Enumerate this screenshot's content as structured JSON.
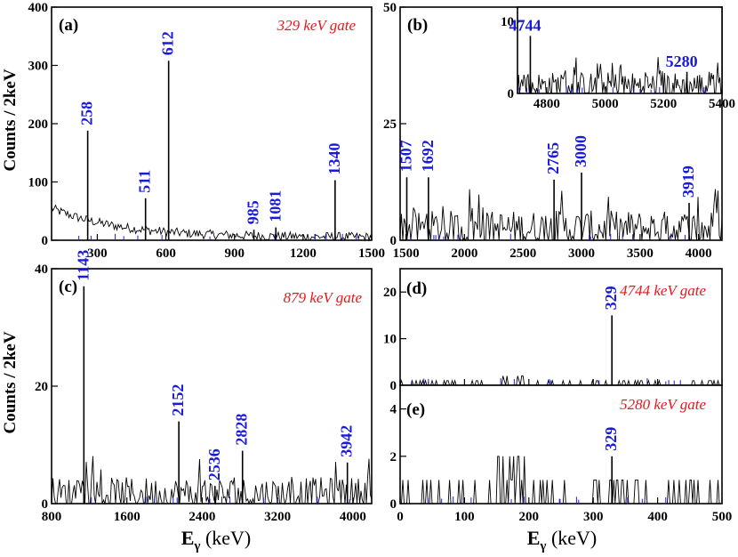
{
  "colors": {
    "spectrum": "#000000",
    "peak_label": "#1a1ad9",
    "gate_label": "#e8161b",
    "blue_spikes": "#1a1ad9"
  },
  "x_axis_label": {
    "main": "E",
    "sub": "γ",
    "unit": " (keV)"
  },
  "y_axis_label": "Counts / 2keV",
  "chart_data": [
    {
      "id": "a",
      "type": "line",
      "panel_label": "(a)",
      "gate_label": "329 keV gate",
      "xlim": [
        100,
        1500
      ],
      "ylim": [
        0,
        400
      ],
      "xticks": [
        300,
        600,
        900,
        1200,
        1500
      ],
      "yticks": [
        0,
        100,
        200,
        300,
        400
      ],
      "ylabel": "Counts / 2keV",
      "background": {
        "type": "exponential",
        "start": 55,
        "end": 5,
        "decay_kev": 300,
        "noise": 8
      },
      "peaks": [
        {
          "label": "258",
          "x": 258,
          "y": 188
        },
        {
          "label": "511",
          "x": 511,
          "y": 72
        },
        {
          "label": "612",
          "x": 612,
          "y": 308
        },
        {
          "label": "985",
          "x": 985,
          "y": 18
        },
        {
          "label": "1081",
          "x": 1081,
          "y": 22
        },
        {
          "label": "1340",
          "x": 1340,
          "y": 103
        }
      ]
    },
    {
      "id": "b",
      "type": "line",
      "panel_label": "(b)",
      "gate_label": "329 keV gate",
      "xlim": [
        1450,
        4200
      ],
      "ylim": [
        0,
        50
      ],
      "xticks": [
        1500,
        2000,
        2500,
        3000,
        3500,
        4000
      ],
      "yticks": [
        0,
        25,
        50
      ],
      "background": {
        "type": "flat",
        "level": 2,
        "noise": 4
      },
      "peaks": [
        {
          "label": "1507",
          "x": 1507,
          "y": 13.5
        },
        {
          "label": "1692",
          "x": 1692,
          "y": 13.5
        },
        {
          "label": "2765",
          "x": 2765,
          "y": 13
        },
        {
          "label": "3000",
          "x": 3000,
          "y": 14.5
        },
        {
          "label": "3919",
          "x": 3919,
          "y": 8
        }
      ],
      "inset": {
        "xlim": [
          4700,
          5400
        ],
        "ylim": [
          0,
          12
        ],
        "xticks": [
          4800,
          5000,
          5200,
          5400
        ],
        "yticks": [
          0,
          10
        ],
        "background": {
          "type": "flat",
          "level": 0.8,
          "noise": 2
        },
        "peaks": [
          {
            "label": "4744",
            "x": 4744,
            "y": 8
          },
          {
            "label": "5280",
            "x": 5280,
            "y": 3
          }
        ]
      }
    },
    {
      "id": "c",
      "type": "line",
      "panel_label": "(c)",
      "gate_label": "879 keV gate",
      "xlim": [
        800,
        4200
      ],
      "ylim": [
        0,
        40
      ],
      "xticks": [
        800,
        1600,
        2400,
        3200,
        4000
      ],
      "yticks": [
        0,
        20,
        40
      ],
      "ylabel": "Counts / 2keV",
      "background": {
        "type": "flat",
        "level": 1.2,
        "noise": 3
      },
      "peaks": [
        {
          "label": "1143",
          "x": 1143,
          "y": 37
        },
        {
          "label": "2152",
          "x": 2152,
          "y": 14
        },
        {
          "label": "2536",
          "x": 2536,
          "y": 3
        },
        {
          "label": "2828",
          "x": 2828,
          "y": 9
        },
        {
          "label": "3942",
          "x": 3942,
          "y": 7
        }
      ]
    },
    {
      "id": "d",
      "type": "line",
      "panel_label": "(d)",
      "gate_label": "4744 keV gate",
      "xlim": [
        0,
        500
      ],
      "ylim": [
        0,
        25
      ],
      "xticks": [
        0,
        100,
        200,
        300,
        400,
        500
      ],
      "yticks": [
        0,
        10,
        20
      ],
      "background": {
        "type": "sparse",
        "level": 1,
        "noise": 1
      },
      "peaks": [
        {
          "label": "329",
          "x": 329,
          "y": 15
        }
      ]
    },
    {
      "id": "e",
      "type": "line",
      "panel_label": "(e)",
      "gate_label": "5280 keV gate",
      "xlim": [
        0,
        500
      ],
      "ylim": [
        0,
        5
      ],
      "xticks": [
        0,
        100,
        200,
        300,
        400,
        500
      ],
      "yticks": [
        0,
        2,
        4
      ],
      "background": {
        "type": "sparse",
        "level": 1,
        "noise": 1
      },
      "peaks": [
        {
          "label": "329",
          "x": 329,
          "y": 2
        }
      ]
    }
  ]
}
